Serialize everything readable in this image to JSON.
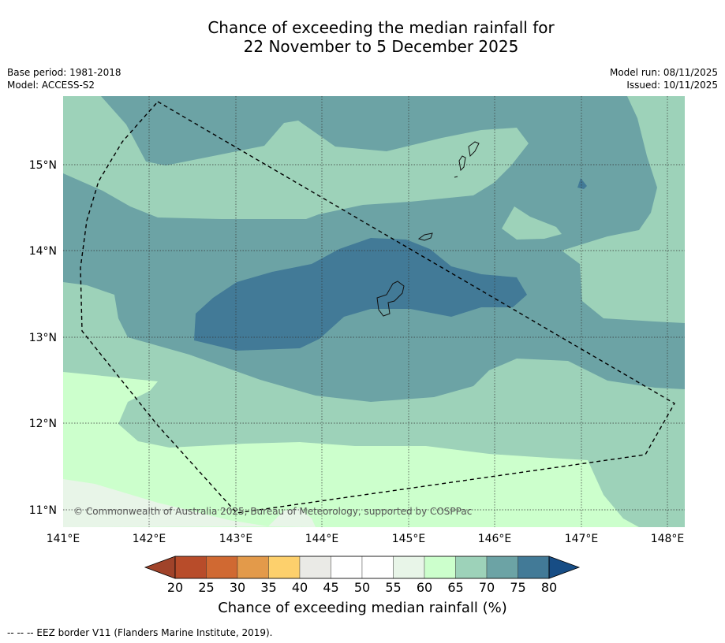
{
  "title": {
    "line1": "Chance of exceeding the median rainfall for",
    "line2": "22 November to 5 December 2025"
  },
  "meta_left": {
    "base_period": "Base period: 1981-2018",
    "model": "Model: ACCESS-S2"
  },
  "meta_right": {
    "model_run": "Model run: 08/11/2025",
    "issued": "Issued: 10/11/2025"
  },
  "axes": {
    "lon_ticks": [
      "141°E",
      "142°E",
      "143°E",
      "144°E",
      "145°E",
      "146°E",
      "147°E",
      "148°E"
    ],
    "lat_ticks": [
      "15°N",
      "14°N",
      "13°N",
      "12°N",
      "11°N"
    ],
    "lon_range": [
      141.0,
      148.2
    ],
    "lat_range": [
      10.8,
      15.8
    ]
  },
  "copyright": "© Commonwealth of Australia 2025, Bureau of Meteorology, supported by COSPPac",
  "colorbar": {
    "title": "Chance of exceeding median rainfall (%)",
    "ticks": [
      "20",
      "25",
      "30",
      "35",
      "40",
      "45",
      "50",
      "55",
      "60",
      "65",
      "70",
      "75",
      "80"
    ],
    "colors": {
      "lt20": "#a0432a",
      "20-25": "#b84c2a",
      "25-30": "#d06932",
      "30-35": "#e39a4a",
      "35-40": "#fdd06c",
      "40-45": "#eaeae6",
      "45-50": "#ffffff",
      "50-55": "#ffffff",
      "55-60": "#e8f5e8",
      "60-65": "#ccffcc",
      "65-70": "#9dd2b9",
      "70-75": "#6ca3a5",
      "75-80": "#427a97",
      "gt80": "#174d85"
    }
  },
  "footnote": "--  --  -- EEZ border V11 (Flanders Marine Institute, 2019)."
}
